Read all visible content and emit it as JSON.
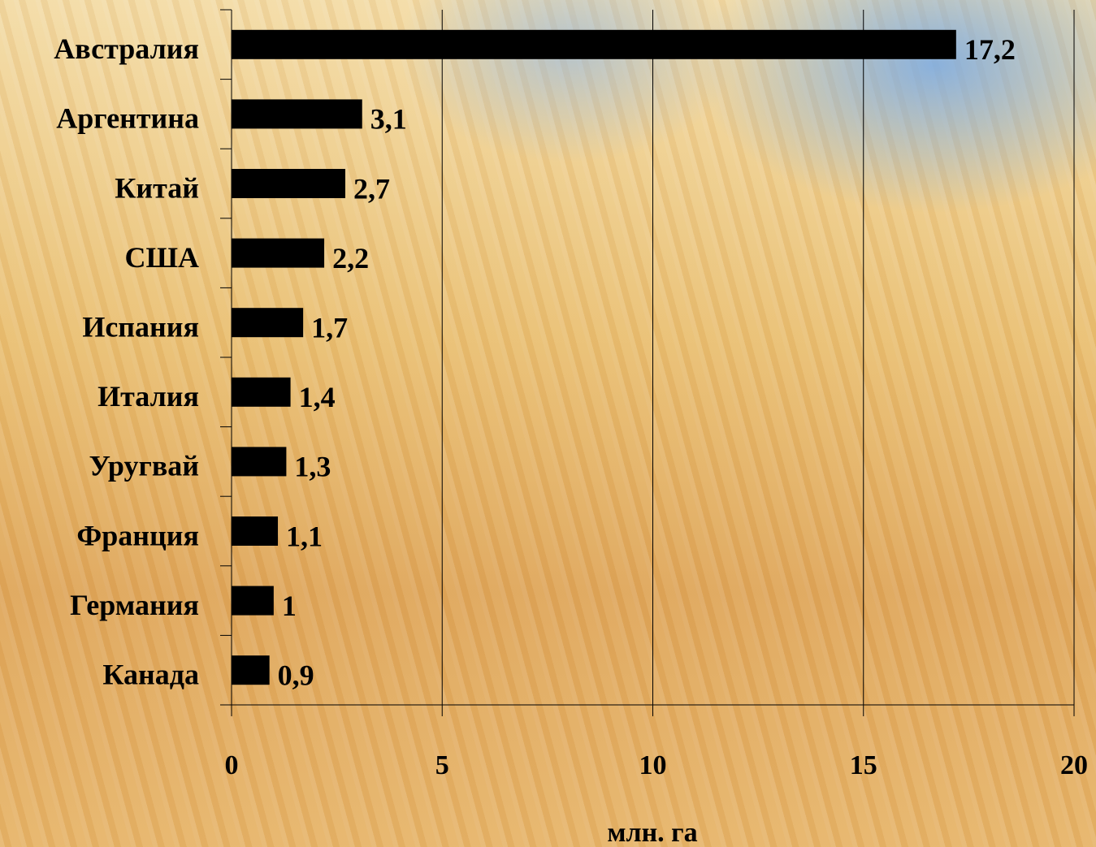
{
  "chart_data": {
    "type": "bar",
    "orientation": "horizontal",
    "categories": [
      "Австралия",
      "Аргентина",
      "Китай",
      "США",
      "Испания",
      "Италия",
      "Уругвай",
      "Франция",
      "Германия",
      "Канада"
    ],
    "values": [
      17.2,
      3.1,
      2.7,
      2.2,
      1.7,
      1.4,
      1.3,
      1.1,
      1,
      0.9
    ],
    "value_labels": [
      "17,2",
      "3,1",
      "2,7",
      "2,2",
      "1,7",
      "1,4",
      "1,3",
      "1,1",
      "1",
      "0,9"
    ],
    "color": "#000000",
    "xlim": [
      0,
      20
    ],
    "xticks": [
      0,
      5,
      10,
      15,
      20
    ],
    "x_label": "млн. га",
    "grid": true
  }
}
